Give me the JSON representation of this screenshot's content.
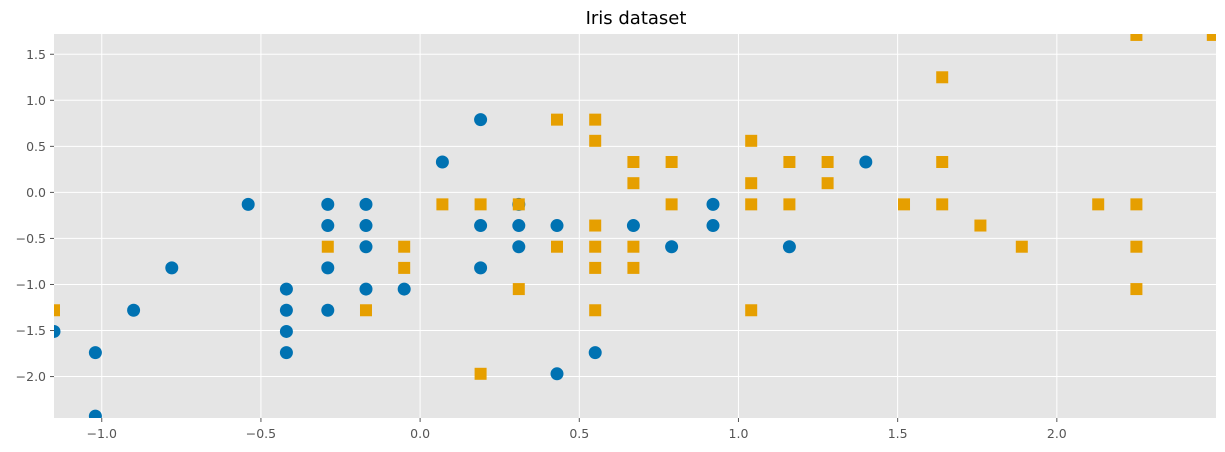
{
  "chart_data": {
    "type": "scatter",
    "title": "Iris dataset",
    "xlabel": "",
    "ylabel": "",
    "xlim": [
      -1.15,
      2.5
    ],
    "ylim": [
      -2.45,
      1.72
    ],
    "grid": true,
    "legend": "none",
    "background": "#e5e5e5",
    "grid_color": "#ffffff",
    "x_ticks": [
      -1.0,
      -0.5,
      0.0,
      0.5,
      1.0,
      1.5,
      2.0
    ],
    "x_tick_labels": [
      "−1.0",
      "−0.5",
      "0.0",
      "0.5",
      "1.0",
      "1.5",
      "2.0"
    ],
    "y_ticks": [
      -2.0,
      -1.5,
      -1.0,
      -0.5,
      0.0,
      0.5,
      1.0,
      1.5
    ],
    "y_tick_labels": [
      "−2.0",
      "−1.5",
      "−1.0",
      "−0.5",
      "0.0",
      "0.5",
      "1.0",
      "1.5"
    ],
    "series": [
      {
        "marker": "circle",
        "color": "#0072b2",
        "points": [
          [
            -1.15,
            -1.51
          ],
          [
            -1.02,
            -1.74
          ],
          [
            -1.02,
            -2.43
          ],
          [
            -0.9,
            -1.28
          ],
          [
            -0.78,
            -0.82
          ],
          [
            -0.54,
            -0.13
          ],
          [
            -0.42,
            -1.05
          ],
          [
            -0.42,
            -1.28
          ],
          [
            -0.42,
            -1.51
          ],
          [
            -0.42,
            -1.74
          ],
          [
            -0.29,
            -0.13
          ],
          [
            -0.29,
            -0.36
          ],
          [
            -0.29,
            -0.82
          ],
          [
            -0.29,
            -1.28
          ],
          [
            -0.17,
            -0.13
          ],
          [
            -0.17,
            -0.36
          ],
          [
            -0.17,
            -0.59
          ],
          [
            -0.17,
            -1.05
          ],
          [
            -0.05,
            -1.05
          ],
          [
            0.07,
            0.33
          ],
          [
            0.19,
            0.79
          ],
          [
            0.19,
            -0.36
          ],
          [
            0.19,
            -0.82
          ],
          [
            0.31,
            -0.13
          ],
          [
            0.31,
            -0.36
          ],
          [
            0.31,
            -0.59
          ],
          [
            0.43,
            -0.36
          ],
          [
            0.43,
            -1.97
          ],
          [
            0.55,
            -1.74
          ],
          [
            0.67,
            -0.36
          ],
          [
            0.79,
            -0.59
          ],
          [
            0.92,
            -0.13
          ],
          [
            0.92,
            -0.36
          ],
          [
            1.16,
            -0.59
          ],
          [
            1.4,
            0.33
          ]
        ]
      },
      {
        "marker": "square",
        "color": "#e69f00",
        "points": [
          [
            -1.15,
            -1.28
          ],
          [
            -0.29,
            -0.59
          ],
          [
            -0.17,
            -1.28
          ],
          [
            -0.05,
            -0.59
          ],
          [
            -0.05,
            -0.82
          ],
          [
            0.07,
            -0.13
          ],
          [
            0.19,
            -0.13
          ],
          [
            0.19,
            -1.97
          ],
          [
            0.31,
            -0.13
          ],
          [
            0.31,
            -1.05
          ],
          [
            0.43,
            0.79
          ],
          [
            0.43,
            -0.59
          ],
          [
            0.55,
            0.79
          ],
          [
            0.55,
            0.56
          ],
          [
            0.55,
            -0.36
          ],
          [
            0.55,
            -0.59
          ],
          [
            0.55,
            -0.82
          ],
          [
            0.55,
            -1.28
          ],
          [
            0.67,
            0.33
          ],
          [
            0.67,
            0.1
          ],
          [
            0.67,
            -0.59
          ],
          [
            0.67,
            -0.82
          ],
          [
            0.79,
            0.33
          ],
          [
            0.79,
            -0.13
          ],
          [
            1.04,
            0.56
          ],
          [
            1.04,
            0.1
          ],
          [
            1.04,
            -0.13
          ],
          [
            1.04,
            -1.28
          ],
          [
            1.16,
            0.33
          ],
          [
            1.16,
            -0.13
          ],
          [
            1.28,
            0.33
          ],
          [
            1.28,
            0.1
          ],
          [
            1.52,
            -0.13
          ],
          [
            1.64,
            1.25
          ],
          [
            1.64,
            0.33
          ],
          [
            1.64,
            -0.13
          ],
          [
            1.76,
            -0.36
          ],
          [
            1.89,
            -0.59
          ],
          [
            2.13,
            -0.13
          ],
          [
            2.25,
            1.71
          ],
          [
            2.25,
            -0.13
          ],
          [
            2.25,
            -0.59
          ],
          [
            2.25,
            -1.05
          ],
          [
            2.49,
            1.71
          ]
        ]
      }
    ]
  }
}
